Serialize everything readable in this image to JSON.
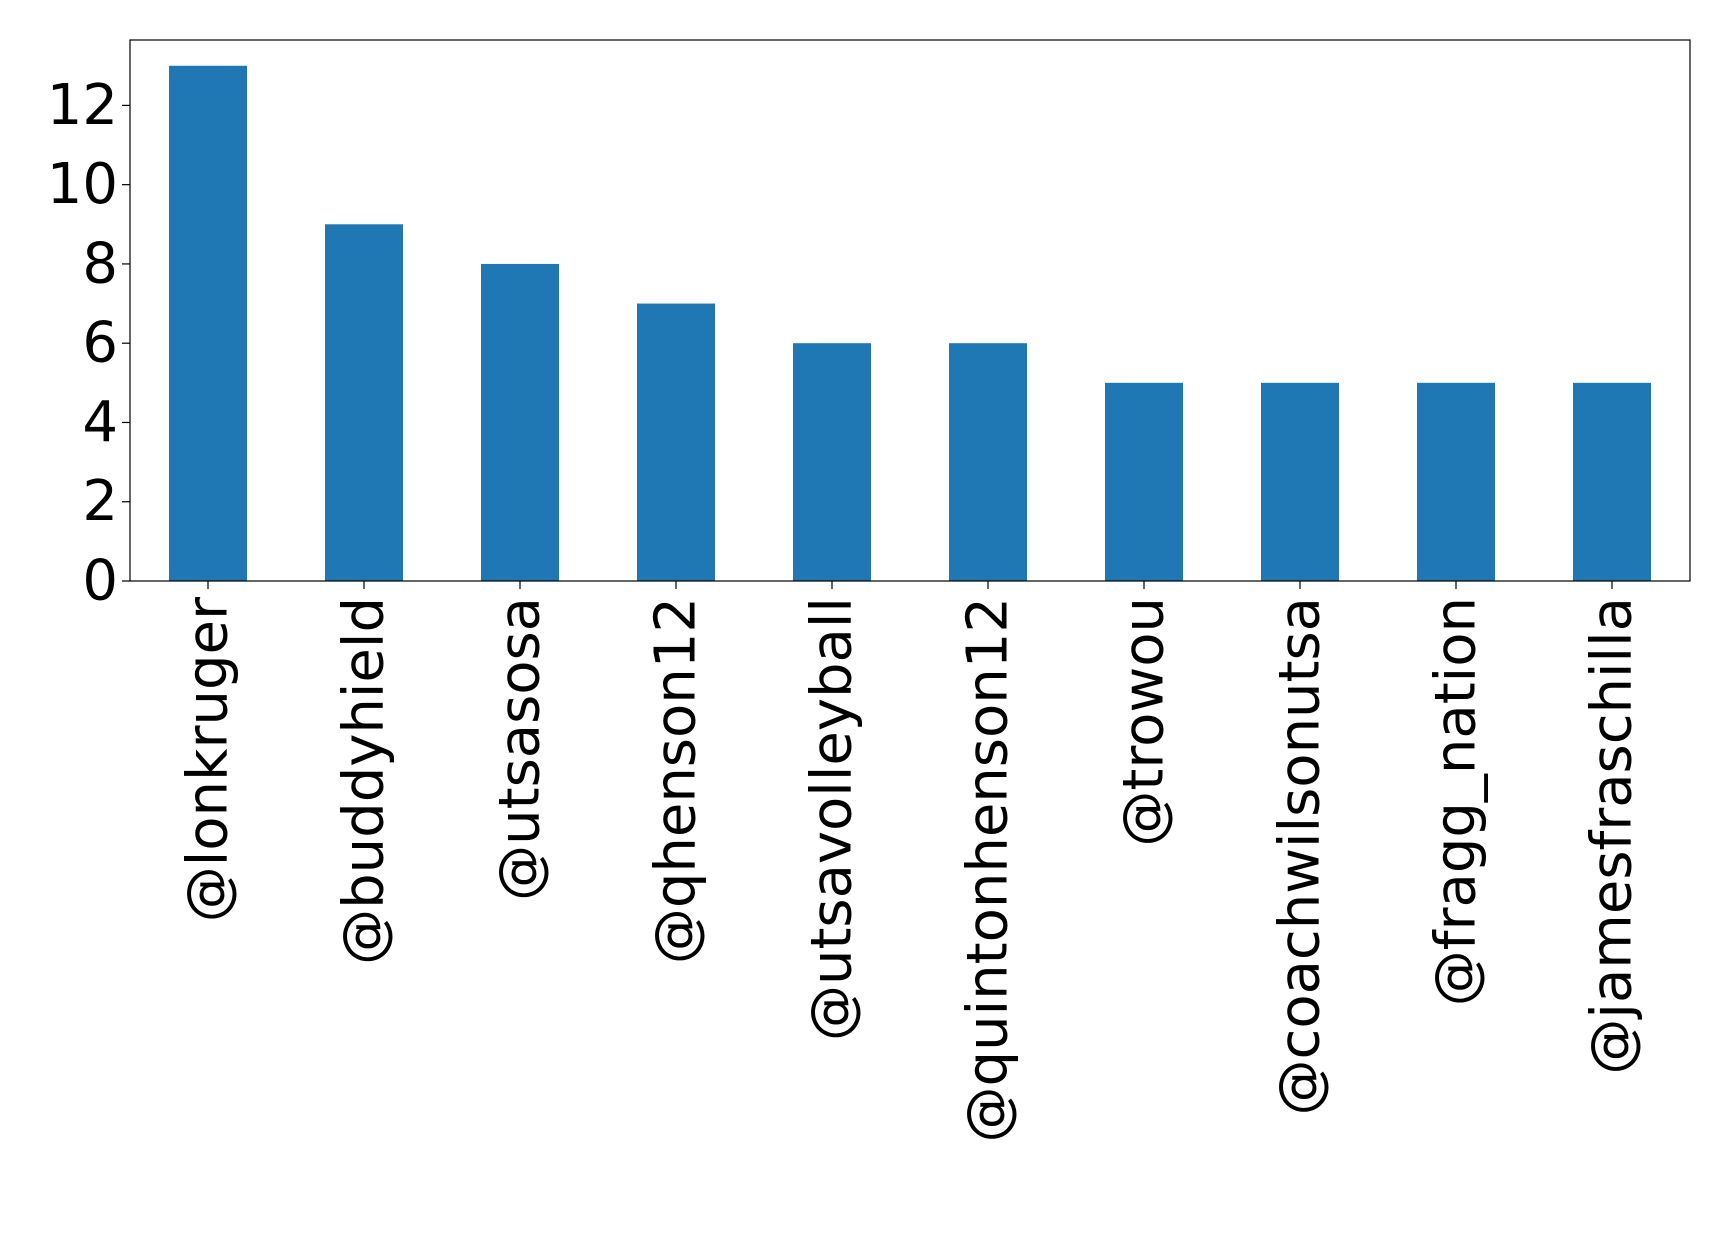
{
  "chart_data": {
    "type": "bar",
    "categories": [
      "@lonkruger",
      "@buddyhield",
      "@utsasosa",
      "@qhenson12",
      "@utsavolleyball",
      "@quintonhenson12",
      "@trowou",
      "@coachwilsonutsa",
      "@fragg_nation",
      "@jamesfraschilla"
    ],
    "values": [
      13,
      9,
      8,
      7,
      6,
      6,
      5,
      5,
      5,
      5
    ],
    "yticks": [
      "0",
      "2",
      "4",
      "6",
      "8",
      "10",
      "12"
    ],
    "ylim": [
      0,
      13.65
    ],
    "grid": false,
    "legend": false,
    "bar_color": "#1f77b4"
  }
}
